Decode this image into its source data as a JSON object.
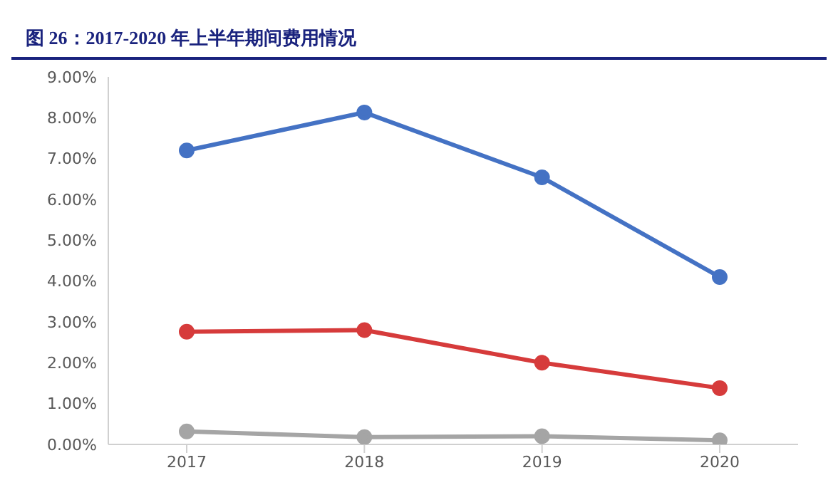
{
  "chart_data": {
    "type": "line",
    "title": "图 26：2017-2020 年上半年期间费用情况",
    "categories": [
      "2017",
      "2018",
      "2019",
      "2020"
    ],
    "series": [
      {
        "color": "#4472c4",
        "values": [
          7.2,
          8.13,
          6.54,
          4.1
        ]
      },
      {
        "color": "#d63b3b",
        "values": [
          2.76,
          2.8,
          2.0,
          1.38
        ]
      },
      {
        "color": "#a5a5a5",
        "values": [
          0.32,
          0.18,
          0.2,
          0.1
        ]
      }
    ],
    "ylim": [
      0,
      9
    ],
    "yticks": [
      {
        "value": 0,
        "label": "0.00%"
      },
      {
        "value": 1,
        "label": "1.00%"
      },
      {
        "value": 2,
        "label": "2.00%"
      },
      {
        "value": 3,
        "label": "3.00%"
      },
      {
        "value": 4,
        "label": "4.00%"
      },
      {
        "value": 5,
        "label": "5.00%"
      },
      {
        "value": 6,
        "label": "6.00%"
      },
      {
        "value": 7,
        "label": "7.00%"
      },
      {
        "value": 8,
        "label": "8.00%"
      },
      {
        "value": 9,
        "label": "9.00%"
      }
    ],
    "grid": false,
    "legend": false,
    "marker": "circle",
    "line_style": "solid"
  }
}
